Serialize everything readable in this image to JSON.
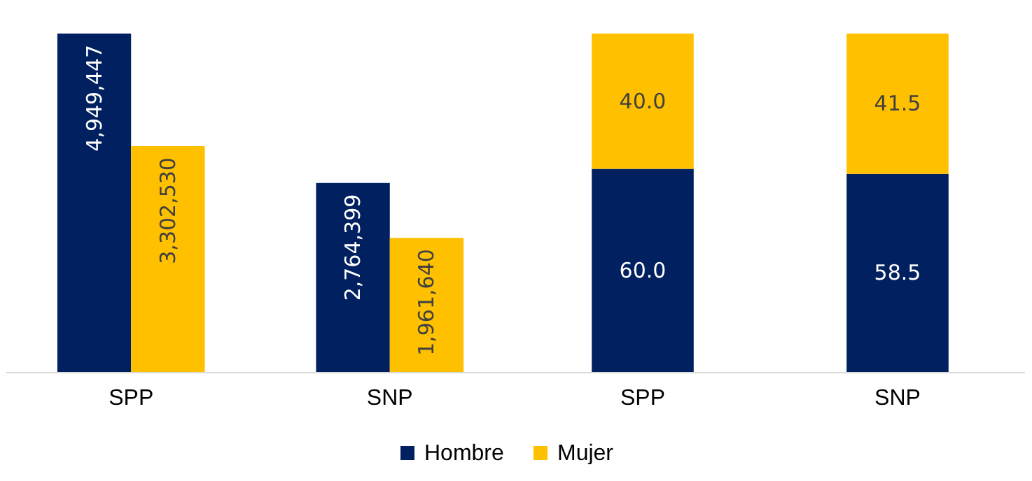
{
  "chart_data": [
    {
      "type": "bar",
      "categories": [
        "SPP",
        "SNP"
      ],
      "tick_labels": "x",
      "legend": "bottom",
      "series": [
        {
          "name": "Hombre",
          "color": "#002060",
          "values": [
            4949447,
            2764399
          ],
          "value_labels": [
            "4,949,447",
            "2,764,399"
          ]
        },
        {
          "name": "Mujer",
          "color": "#ffc000",
          "values": [
            3302530,
            1961640
          ],
          "value_labels": [
            "3,302,530",
            "1,961,640"
          ]
        }
      ]
    },
    {
      "type": "bar",
      "stacked": true,
      "categories": [
        "SPP",
        "SNP"
      ],
      "tick_labels": "x",
      "legend": "bottom",
      "series": [
        {
          "name": "Hombre",
          "color": "#002060",
          "values": [
            60.0,
            58.5
          ],
          "value_labels": [
            "60.0",
            "58.5"
          ]
        },
        {
          "name": "Mujer",
          "color": "#ffc000",
          "values": [
            40.0,
            41.5
          ],
          "value_labels": [
            "40.0",
            "41.5"
          ]
        }
      ]
    }
  ]
}
